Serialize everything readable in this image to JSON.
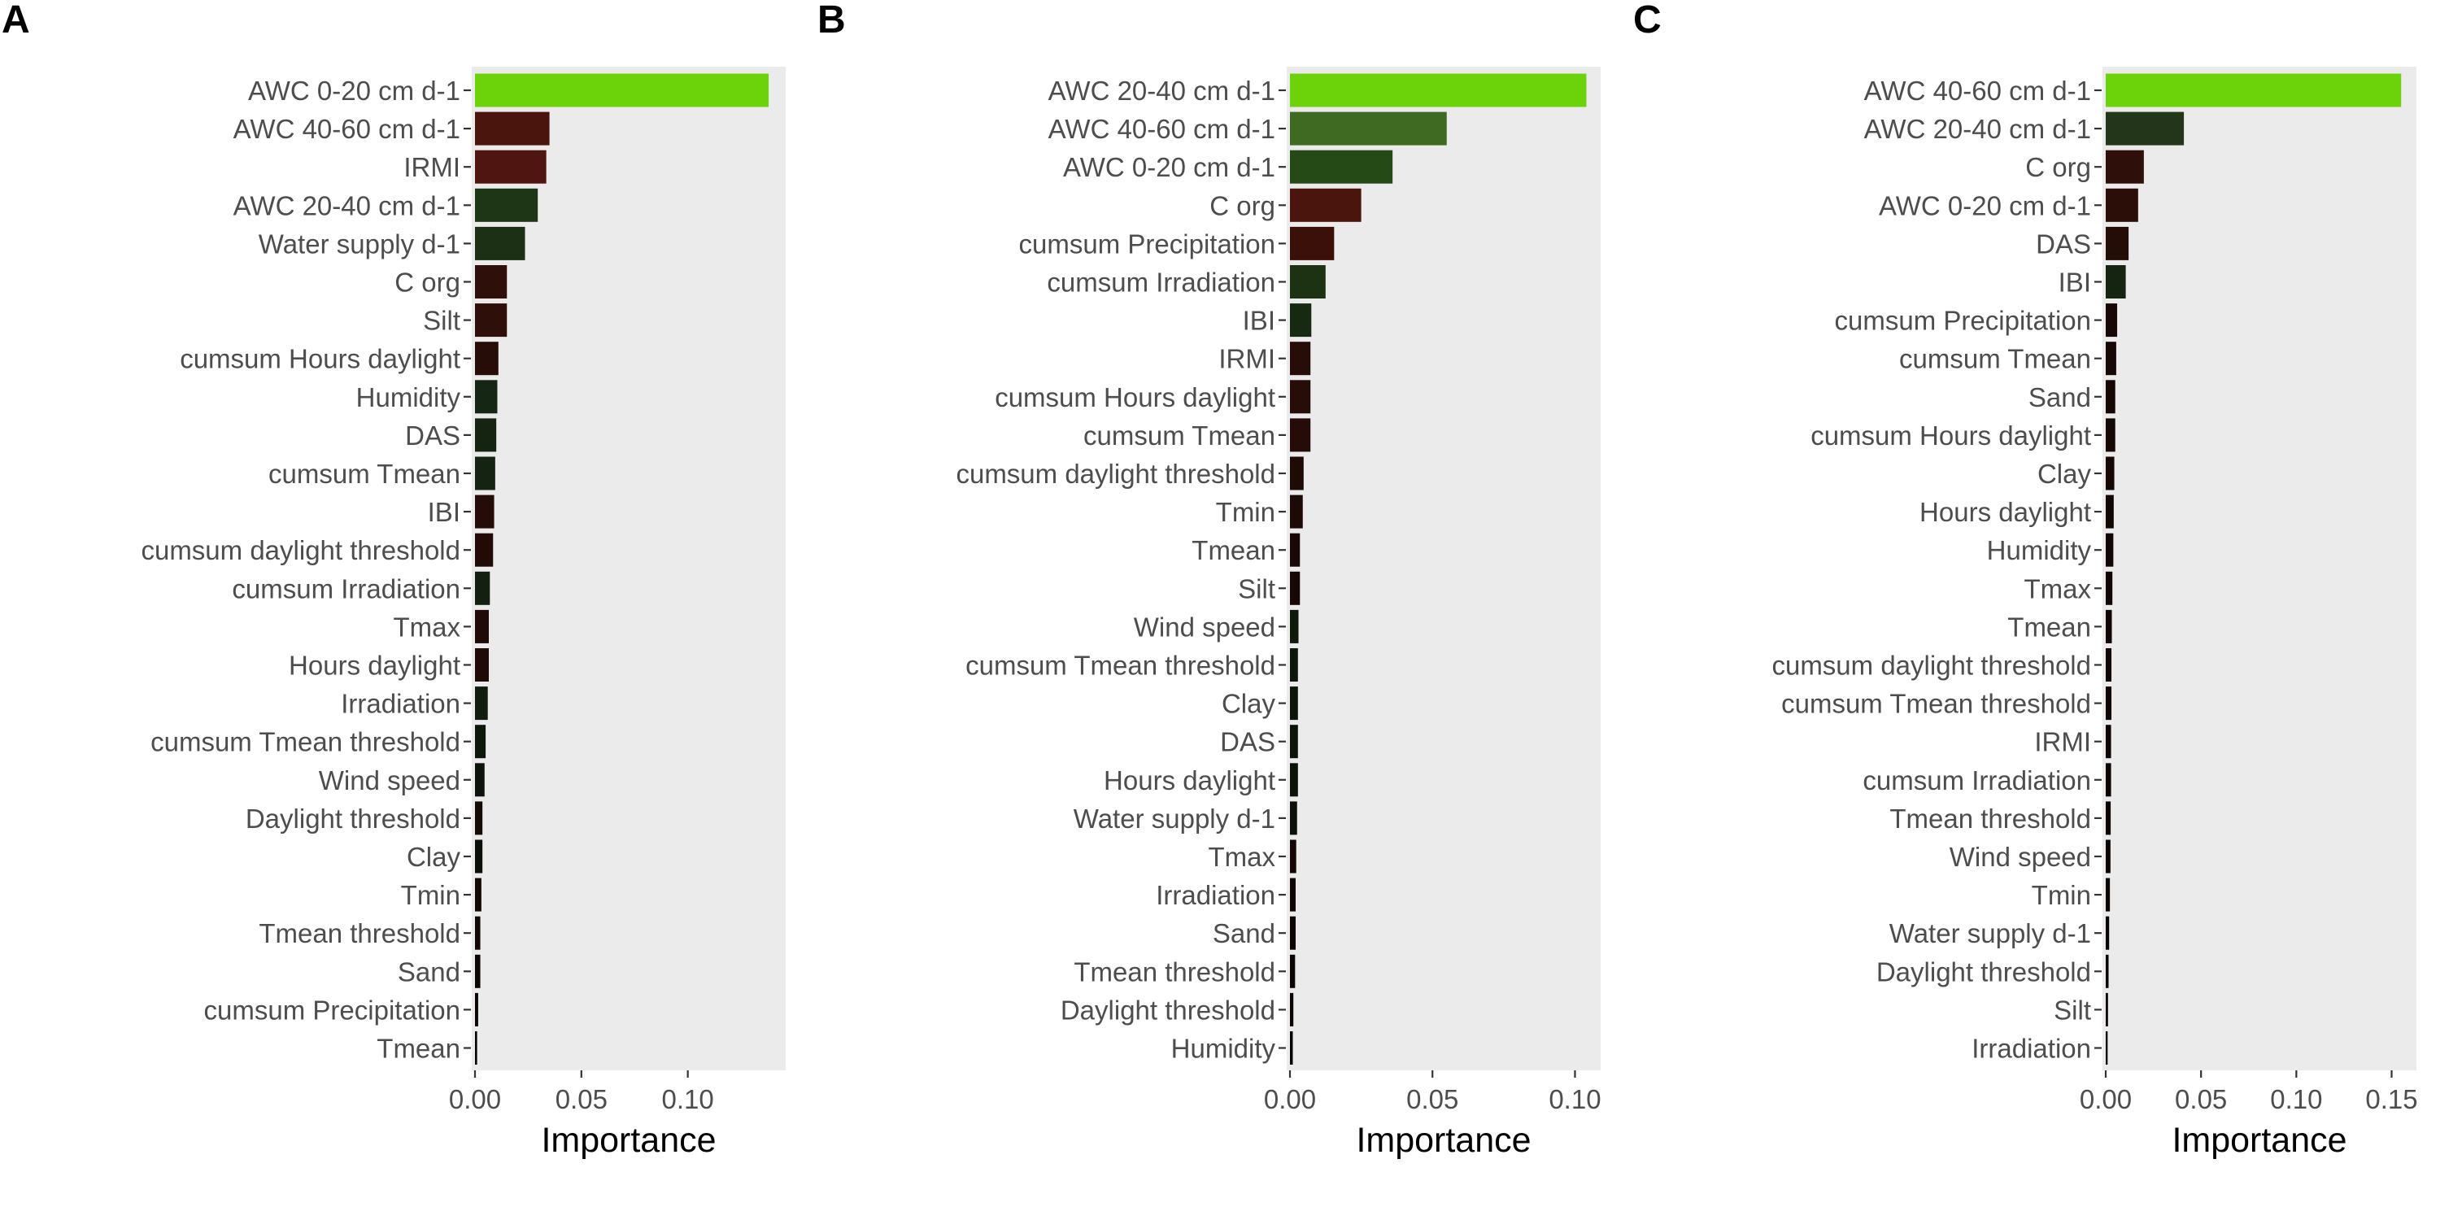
{
  "chart_data": [
    {
      "type": "bar",
      "orientation": "horizontal",
      "panel_label": "A",
      "xlabel": "Importance",
      "xlim": [
        0,
        0.146
      ],
      "xticks": [
        0.0,
        0.05,
        0.1
      ],
      "xtick_labels": [
        "0.00",
        "0.05",
        "0.10"
      ],
      "grid": false,
      "panel_background": "#ebebeb",
      "categories": [
        "AWC 0-20 cm d-1",
        "AWC 40-60 cm d-1",
        "IRMI",
        "AWC 20-40 cm d-1",
        "Water supply d-1",
        "C org",
        "Silt",
        "cumsum Hours daylight",
        "Humidity",
        "DAS",
        "cumsum Tmean",
        "IBI",
        "cumsum daylight threshold",
        "cumsum Irradiation",
        "Tmax",
        "Hours daylight",
        "Irradiation",
        "cumsum Tmean threshold",
        "Wind speed",
        "Daylight threshold",
        "Clay",
        "Tmin",
        "Tmean threshold",
        "Sand",
        "cumsum Precipitation",
        "Tmean"
      ],
      "values": [
        0.138,
        0.035,
        0.0335,
        0.0295,
        0.0235,
        0.015,
        0.015,
        0.011,
        0.0105,
        0.01,
        0.0095,
        0.009,
        0.0085,
        0.007,
        0.0065,
        0.0065,
        0.006,
        0.005,
        0.0045,
        0.0035,
        0.0035,
        0.003,
        0.0025,
        0.0025,
        0.0015,
        0.001
      ],
      "colors": [
        "#6cd20a",
        "#4a150d",
        "#4f1510",
        "#1e3616",
        "#1b3014",
        "#2f0f09",
        "#2f0f09",
        "#270d08",
        "#152714",
        "#142411",
        "#152412",
        "#250c08",
        "#220b07",
        "#131f0f",
        "#1f0a06",
        "#1f0a06",
        "#111c0e",
        "#0e170b",
        "#0c130a",
        "#160a05",
        "#0a1008",
        "#130804",
        "#110703",
        "#0e0603",
        "#0c0503",
        "#050303"
      ]
    },
    {
      "type": "bar",
      "orientation": "horizontal",
      "panel_label": "B",
      "xlabel": "Importance",
      "xlim": [
        0,
        0.109
      ],
      "xticks": [
        0.0,
        0.05,
        0.1
      ],
      "xtick_labels": [
        "0.00",
        "0.05",
        "0.10"
      ],
      "grid": false,
      "panel_background": "#ebebeb",
      "categories": [
        "AWC 20-40 cm d-1",
        "AWC 40-60 cm d-1",
        "AWC 0-20 cm d-1",
        "C org",
        "cumsum Precipitation",
        "cumsum Irradiation",
        "IBI",
        "IRMI",
        "cumsum Hours daylight",
        "cumsum Tmean",
        "cumsum daylight threshold",
        "Tmin",
        "Tmean",
        "Silt",
        "Wind speed",
        "cumsum Tmean threshold",
        "Clay",
        "DAS",
        "Hours daylight",
        "Water supply d-1",
        "Tmax",
        "Irradiation",
        "Sand",
        "Tmean threshold",
        "Daylight threshold",
        "Humidity"
      ],
      "values": [
        0.104,
        0.055,
        0.036,
        0.025,
        0.0155,
        0.0125,
        0.0075,
        0.0072,
        0.0072,
        0.0072,
        0.0048,
        0.0045,
        0.0035,
        0.0035,
        0.003,
        0.0028,
        0.0028,
        0.0028,
        0.0028,
        0.0025,
        0.0022,
        0.002,
        0.002,
        0.0018,
        0.0012,
        0.001
      ],
      "colors": [
        "#6cd20a",
        "#3f6a21",
        "#254a15",
        "#4a150d",
        "#3a1009",
        "#1c3212",
        "#162a12",
        "#270d08",
        "#260d08",
        "#250c08",
        "#1f0a06",
        "#1d0906",
        "#190805",
        "#170805",
        "#0f1a0c",
        "#0e170b",
        "#0d150a",
        "#0c1409",
        "#0b1208",
        "#0a1108",
        "#120704",
        "#100604",
        "#0e0503",
        "#0c0503",
        "#0a0403",
        "#050303"
      ]
    },
    {
      "type": "bar",
      "orientation": "horizontal",
      "panel_label": "C",
      "xlabel": "Importance",
      "xlim": [
        0,
        0.163
      ],
      "xticks": [
        0.0,
        0.05,
        0.1,
        0.15
      ],
      "xtick_labels": [
        "0.00",
        "0.05",
        "0.10",
        "0.15"
      ],
      "grid": false,
      "panel_background": "#ebebeb",
      "categories": [
        "AWC 40-60 cm d-1",
        "AWC 20-40 cm d-1",
        "C org",
        "AWC 0-20 cm d-1",
        "DAS",
        "IBI",
        "cumsum Precipitation",
        "cumsum Tmean",
        "Sand",
        "cumsum Hours daylight",
        "Clay",
        "Hours daylight",
        "Humidity",
        "Tmax",
        "Tmean",
        "cumsum daylight threshold",
        "cumsum Tmean threshold",
        "IRMI",
        "cumsum Irradiation",
        "Tmean threshold",
        "Wind speed",
        "Tmin",
        "Water supply d-1",
        "Daylight threshold",
        "Silt",
        "Irradiation"
      ],
      "values": [
        0.155,
        0.041,
        0.02,
        0.017,
        0.012,
        0.0105,
        0.006,
        0.0055,
        0.005,
        0.005,
        0.0045,
        0.0042,
        0.004,
        0.0035,
        0.0032,
        0.003,
        0.003,
        0.0028,
        0.0028,
        0.0026,
        0.0025,
        0.0022,
        0.0018,
        0.0015,
        0.0012,
        0.001
      ],
      "colors": [
        "#6cd20a",
        "#24361a",
        "#2f0f09",
        "#2c0e08",
        "#240c07",
        "#142411",
        "#180805",
        "#170805",
        "#160704",
        "#150704",
        "#140704",
        "#130704",
        "#120604",
        "#110604",
        "#100604",
        "#0f0503",
        "#0e0503",
        "#0d0503",
        "#0c0403",
        "#0b0403",
        "#0b0403",
        "#0a0403",
        "#090303",
        "#080303",
        "#070303",
        "#050303"
      ]
    }
  ]
}
